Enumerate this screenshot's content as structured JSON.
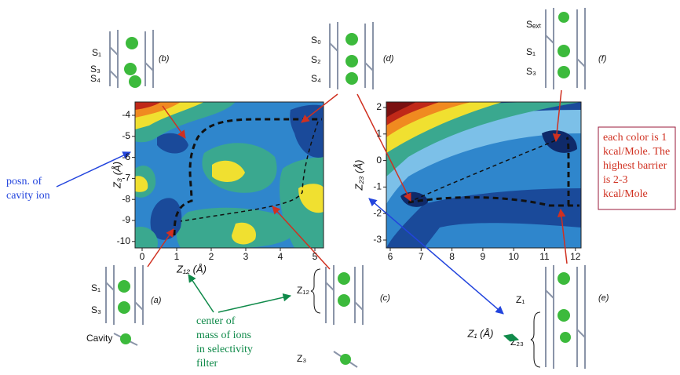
{
  "left_plot": {
    "xlabel": "Z₁₂ (Å)",
    "ylabel": "Z₃ (Å)",
    "xticks": [
      0,
      1,
      2,
      3,
      4,
      5
    ],
    "yticks": [
      -4,
      -5,
      -6,
      -7,
      -8,
      -9,
      -10
    ]
  },
  "right_plot": {
    "xlabel": "Z₁ (Å)",
    "ylabel": "Z₂₃ (Å)",
    "xticks": [
      6,
      7,
      8,
      9,
      10,
      11,
      12
    ],
    "yticks": [
      2,
      1,
      0,
      -1,
      -2,
      -3
    ]
  },
  "panels": {
    "a": {
      "tag": "(a)",
      "labels": [
        "S₁",
        "S₃",
        "Cavity"
      ]
    },
    "b": {
      "tag": "(b)",
      "labels": [
        "S₁",
        "S₃",
        "S₄"
      ]
    },
    "c": {
      "tag": "(c)",
      "labels": [
        "Z₁₂",
        "Z₃"
      ]
    },
    "d": {
      "tag": "(d)",
      "labels": [
        "S₀",
        "S₂",
        "S₄"
      ]
    },
    "e": {
      "tag": "(e)",
      "labels": [
        "Z₁",
        "Z₂₃"
      ]
    },
    "f": {
      "tag": "(f)",
      "labels": [
        "Sₑₓₜ",
        "S₁",
        "S₃"
      ]
    }
  },
  "annotations": {
    "cavity": [
      "posn. of",
      "cavity ion"
    ],
    "center": [
      "center of",
      "mass of ions",
      "in selectivity",
      "filter"
    ],
    "energy": [
      "each color is 1",
      "kcal/Mole. The",
      "highest barrier",
      "is 2-3",
      "kcal/Mole"
    ]
  }
}
